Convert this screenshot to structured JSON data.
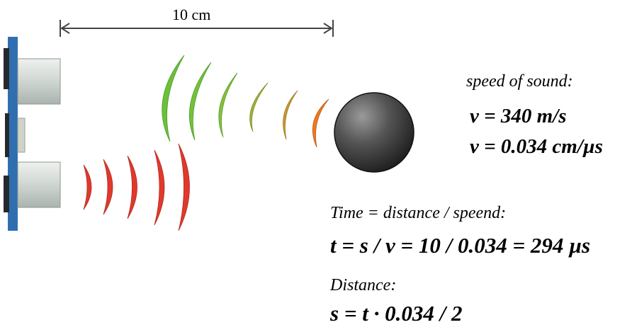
{
  "dimension": {
    "label": "10 cm"
  },
  "speed": {
    "heading": "speed of sound:",
    "line1": "v = 340 m/s",
    "line2": "v = 0.034 cm/µs"
  },
  "time": {
    "heading": "Time = distance / speend:",
    "formula": "t = s / v = 10 / 0.034 = 294 µs"
  },
  "distance": {
    "heading": "Distance:",
    "formula": "s = t · 0.034 / 2"
  },
  "colors": {
    "board": "#2f6fb0",
    "transducer": "#d9dfdc",
    "outgoing_wave": "#e0392c",
    "echo_wave_far": "#6cc03a",
    "echo_wave_near": "#ee7a22",
    "object": "#2e2e2e"
  }
}
